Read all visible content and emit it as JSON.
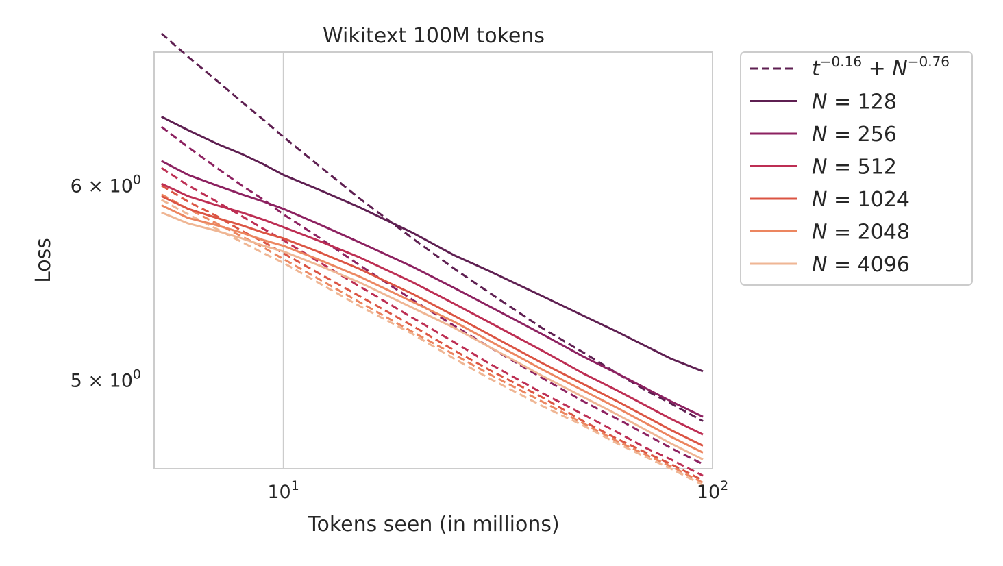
{
  "chart_data": {
    "type": "line",
    "title": "Wikitext 100M tokens",
    "xlabel": "Tokens seen (in millions)",
    "ylabel": "Loss",
    "xscale": "log",
    "yscale": "log",
    "xlim": [
      5.0,
      100.0
    ],
    "ylim": [
      4.6,
      6.8
    ],
    "x_ticks": [
      {
        "value": 10,
        "base": "10",
        "exp": "1"
      },
      {
        "value": 100,
        "base": "10",
        "exp": "2"
      }
    ],
    "y_ticks": [
      {
        "value": 6,
        "mant": "6",
        "base": "10",
        "exp": "0"
      },
      {
        "value": 5,
        "mant": "5",
        "base": "10",
        "exp": "0"
      }
    ],
    "grid": true,
    "legend_position": "outside right",
    "fit_label": {
      "t": "t",
      "t_exp": "−0.16",
      "plus": " + ",
      "n": "N",
      "n_exp": "−0.76"
    },
    "fit_formula": "t^(-0.16) + N^(-0.76)",
    "x": [
      5.2,
      6,
      7,
      8,
      9,
      10,
      12,
      15,
      20,
      25,
      30,
      40,
      50,
      60,
      70,
      80,
      95
    ],
    "series": [
      {
        "name": "N = 128",
        "n": "N",
        "eq": " = ",
        "val": "128",
        "color": "#5e1f51",
        "values": [
          6.4,
          6.32,
          6.24,
          6.18,
          6.12,
          6.06,
          5.98,
          5.88,
          5.74,
          5.62,
          5.54,
          5.41,
          5.31,
          5.23,
          5.16,
          5.1,
          5.04
        ],
        "fit": [
          6.92,
          6.77,
          6.62,
          6.49,
          6.38,
          6.28,
          6.12,
          5.93,
          5.71,
          5.55,
          5.43,
          5.25,
          5.13,
          5.03,
          4.95,
          4.89,
          4.81
        ]
      },
      {
        "name": "N = 256",
        "n": "N",
        "eq": " = ",
        "val": "256",
        "color": "#8c2160",
        "values": [
          6.14,
          6.06,
          6.0,
          5.95,
          5.91,
          5.87,
          5.79,
          5.69,
          5.56,
          5.45,
          5.36,
          5.22,
          5.11,
          5.03,
          4.96,
          4.9,
          4.83
        ],
        "fit": [
          6.34,
          6.22,
          6.1,
          6.0,
          5.92,
          5.84,
          5.72,
          5.57,
          5.39,
          5.26,
          5.16,
          5.01,
          4.9,
          4.82,
          4.75,
          4.69,
          4.62
        ]
      },
      {
        "name": "N = 512",
        "n": "N",
        "eq": " = ",
        "val": "512",
        "color": "#bd2e53",
        "values": [
          6.01,
          5.94,
          5.89,
          5.85,
          5.81,
          5.77,
          5.7,
          5.61,
          5.48,
          5.37,
          5.28,
          5.14,
          5.03,
          4.95,
          4.88,
          4.82,
          4.75
        ],
        "fit": [
          6.1,
          6.0,
          5.91,
          5.83,
          5.76,
          5.7,
          5.59,
          5.46,
          5.3,
          5.18,
          5.08,
          4.94,
          4.84,
          4.76,
          4.69,
          4.64,
          4.57
        ]
      },
      {
        "name": "N = 1024",
        "n": "N",
        "eq": " = ",
        "val": "1024",
        "color": "#db5443",
        "values": [
          5.94,
          5.87,
          5.82,
          5.78,
          5.74,
          5.71,
          5.64,
          5.55,
          5.42,
          5.31,
          5.22,
          5.08,
          4.98,
          4.9,
          4.83,
          4.77,
          4.7
        ],
        "fit": [
          6.0,
          5.91,
          5.83,
          5.75,
          5.69,
          5.63,
          5.53,
          5.41,
          5.26,
          5.14,
          5.05,
          4.92,
          4.81,
          4.73,
          4.67,
          4.62,
          4.55
        ]
      },
      {
        "name": "N = 2048",
        "n": "N",
        "eq": " = ",
        "val": "2048",
        "color": "#ec8660",
        "values": [
          5.89,
          5.82,
          5.78,
          5.74,
          5.7,
          5.67,
          5.6,
          5.51,
          5.38,
          5.28,
          5.19,
          5.05,
          4.95,
          4.87,
          4.8,
          4.74,
          4.67
        ],
        "fit": [
          5.95,
          5.87,
          5.79,
          5.72,
          5.66,
          5.6,
          5.5,
          5.38,
          5.23,
          5.12,
          5.03,
          4.9,
          4.8,
          4.72,
          4.66,
          4.61,
          4.54
        ]
      },
      {
        "name": "N = 4096",
        "n": "N",
        "eq": " = ",
        "val": "4096",
        "color": "#efb694",
        "values": [
          5.85,
          5.79,
          5.75,
          5.71,
          5.67,
          5.64,
          5.57,
          5.48,
          5.35,
          5.25,
          5.16,
          5.02,
          4.92,
          4.84,
          4.77,
          4.71,
          4.64
        ],
        "fit": [
          5.92,
          5.84,
          5.76,
          5.69,
          5.63,
          5.58,
          5.48,
          5.36,
          5.22,
          5.1,
          5.01,
          4.88,
          4.79,
          4.71,
          4.65,
          4.6,
          4.53
        ]
      }
    ]
  }
}
